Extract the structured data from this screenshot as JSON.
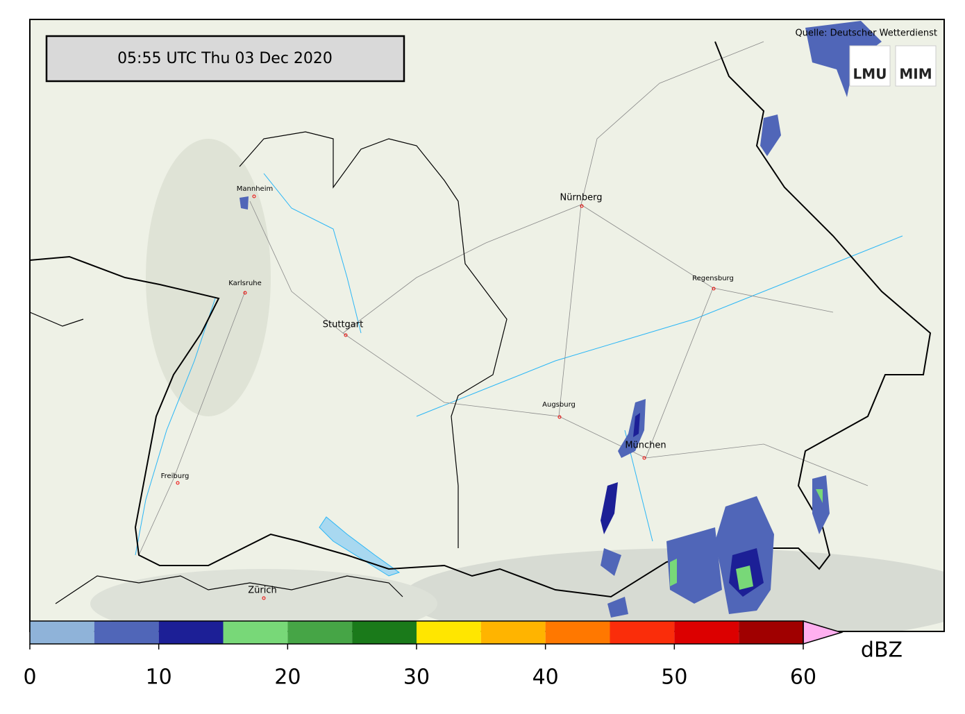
{
  "header": {
    "timestamp": "05:55 UTC  Thu 03 Dec 2020",
    "source": "Quelle: Deutscher Wetterdienst",
    "logos": [
      "LMU",
      "MIM"
    ]
  },
  "cities": [
    "Mannheim",
    "Nürnberg",
    "Karlsruhe",
    "Stuttgart",
    "Regensburg",
    "Augsburg",
    "München",
    "Freiburg",
    "Zürich"
  ],
  "colorbar": {
    "label": "dBZ",
    "bounds": [
      0,
      5,
      10,
      15,
      20,
      25,
      30,
      35,
      40,
      45,
      50,
      55,
      60
    ],
    "colors": [
      "#8fb3d9",
      "#5066b8",
      "#1c1f96",
      "#78d878",
      "#46a546",
      "#1a7a1a",
      "#ffe600",
      "#ffb400",
      "#ff7800",
      "#fa2d0a",
      "#dc0000",
      "#a00000"
    ],
    "extend_color": "#ffb0f0",
    "ticks": [
      0,
      10,
      20,
      30,
      40,
      50,
      60
    ]
  }
}
